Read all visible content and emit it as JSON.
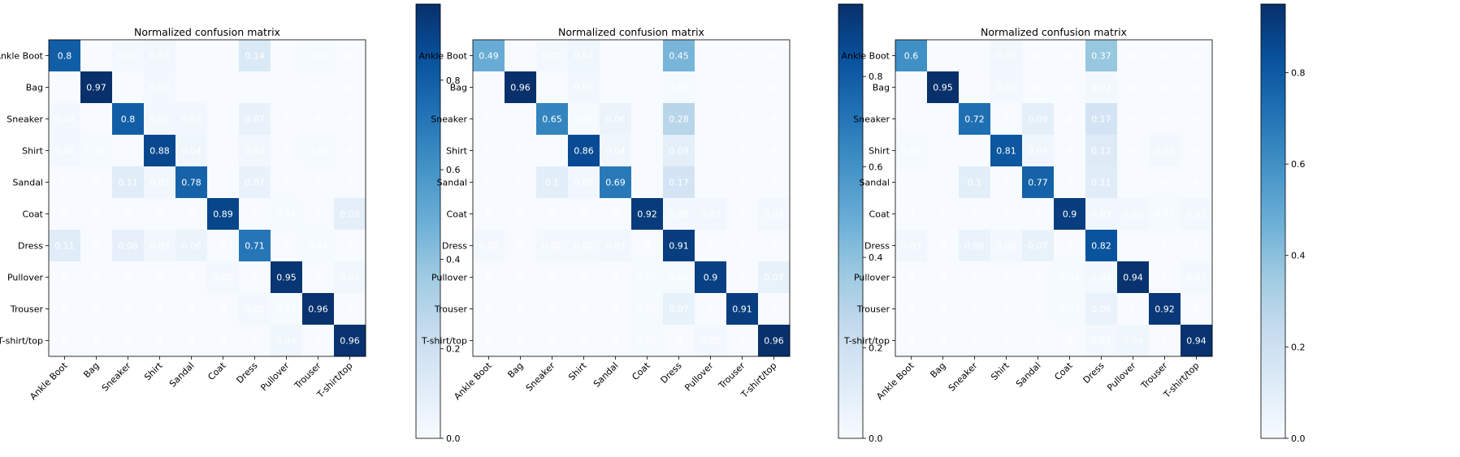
{
  "chart_data": [
    {
      "type": "heatmap",
      "title": "Normalized confusion matrix",
      "labels": [
        "Ankle Boot",
        "Bag",
        "Sneaker",
        "Shirt",
        "Sandal",
        "Coat",
        "Dress",
        "Pullover",
        "Trouser",
        "T-shirt/top"
      ],
      "vmin": 0,
      "vmax": 0.97,
      "colorbar_ticks": [
        0.0,
        0.2,
        0.4,
        0.6,
        0.8
      ],
      "colormap": [
        "#f7fbff",
        "#deebf7",
        "#c6dbef",
        "#9ecae1",
        "#6baed6",
        "#4292c6",
        "#2171b5",
        "#08519c",
        "#08306b"
      ],
      "matrix": [
        [
          0.8,
          0.0,
          0.02,
          0.03,
          0.0,
          0.0,
          0.14,
          0.0,
          0.01,
          0.0
        ],
        [
          0.0,
          0.97,
          0.0,
          0.02,
          0.0,
          0.0,
          0.0,
          0.0,
          0.0,
          0.0
        ],
        [
          0.02,
          0.0,
          0.8,
          0.02,
          0.03,
          0.0,
          0.07,
          0.0,
          0.0,
          0.0
        ],
        [
          0.02,
          0.01,
          0.0,
          0.88,
          0.04,
          0.0,
          0.03,
          0.0,
          0.01,
          0.0
        ],
        [
          0.0,
          0.0,
          0.11,
          0.03,
          0.78,
          0.0,
          0.07,
          0.0,
          0.0,
          0.0
        ],
        [
          0.0,
          0.0,
          0.0,
          0.0,
          0.0,
          0.89,
          0.0,
          0.01,
          0.0,
          0.09
        ],
        [
          0.11,
          0.0,
          0.08,
          0.03,
          0.06,
          0.0,
          0.71,
          0.0,
          0.01,
          0.0
        ],
        [
          0.0,
          0.0,
          0.0,
          0.0,
          0.0,
          0.02,
          0.0,
          0.95,
          0.0,
          0.03
        ],
        [
          0.0,
          0.0,
          0.0,
          0.0,
          0.0,
          0.0,
          0.02,
          0.01,
          0.96,
          0.0
        ],
        [
          0.0,
          0.0,
          0.0,
          0.0,
          0.0,
          0.0,
          0.0,
          0.04,
          0.0,
          0.96
        ]
      ]
    },
    {
      "type": "heatmap",
      "title": "Normalized confusion matrix",
      "labels": [
        "Ankle Boot",
        "Bag",
        "Sneaker",
        "Shirt",
        "Sandal",
        "Coat",
        "Dress",
        "Pullover",
        "Trouser",
        "T-shirt/top"
      ],
      "vmin": 0,
      "vmax": 0.96,
      "colorbar_ticks": [
        0.0,
        0.2,
        0.4,
        0.6,
        0.8
      ],
      "colormap": [
        "#f7fbff",
        "#deebf7",
        "#c6dbef",
        "#9ecae1",
        "#6baed6",
        "#4292c6",
        "#2171b5",
        "#08519c",
        "#08306b"
      ],
      "matrix": [
        [
          0.49,
          0.0,
          0.02,
          0.04,
          0.0,
          0.0,
          0.45,
          0.0,
          0.0,
          0.0
        ],
        [
          0.0,
          0.96,
          0.0,
          0.03,
          0.0,
          0.0,
          0.01,
          0.0,
          0.0,
          0.0
        ],
        [
          0.0,
          0.0,
          0.65,
          0.01,
          0.06,
          0.0,
          0.28,
          0.0,
          0.0,
          0.0
        ],
        [
          0.0,
          0.0,
          0.0,
          0.86,
          0.04,
          0.0,
          0.09,
          0.0,
          0.0,
          0.0
        ],
        [
          0.0,
          0.0,
          0.1,
          0.03,
          0.69,
          0.0,
          0.17,
          0.0,
          0.0,
          0.0
        ],
        [
          0.0,
          0.0,
          0.0,
          0.0,
          0.0,
          0.92,
          0.02,
          0.03,
          0.0,
          0.02
        ],
        [
          0.02,
          0.0,
          0.02,
          0.02,
          0.03,
          0.0,
          0.91,
          0.0,
          0.0,
          0.0
        ],
        [
          0.0,
          0.0,
          0.0,
          0.0,
          0.0,
          0.01,
          0.01,
          0.9,
          0.0,
          0.07
        ],
        [
          0.0,
          0.0,
          0.0,
          0.0,
          0.0,
          0.01,
          0.07,
          0.0,
          0.91,
          0.0
        ],
        [
          0.0,
          0.0,
          0.0,
          0.0,
          0.0,
          0.01,
          0.0,
          0.02,
          0.0,
          0.96
        ]
      ]
    },
    {
      "type": "heatmap",
      "title": "Normalized confusion matrix",
      "labels": [
        "Ankle Boot",
        "Bag",
        "Sneaker",
        "Shirt",
        "Sandal",
        "Coat",
        "Dress",
        "Pullover",
        "Trouser",
        "T-shirt/top"
      ],
      "vmin": 0,
      "vmax": 0.95,
      "colorbar_ticks": [
        0.0,
        0.2,
        0.4,
        0.6,
        0.8
      ],
      "colormap": [
        "#f7fbff",
        "#deebf7",
        "#c6dbef",
        "#9ecae1",
        "#6baed6",
        "#4292c6",
        "#2171b5",
        "#08519c",
        "#08306b"
      ],
      "matrix": [
        [
          0.6,
          0.0,
          0.0,
          0.03,
          0.0,
          0.0,
          0.37,
          0.0,
          0.0,
          0.0
        ],
        [
          0.0,
          0.95,
          0.0,
          0.02,
          0.0,
          0.0,
          0.02,
          0.0,
          0.0,
          0.0
        ],
        [
          0.0,
          0.0,
          0.72,
          0.0,
          0.09,
          0.0,
          0.17,
          0.0,
          0.0,
          0.0
        ],
        [
          0.01,
          0.0,
          0.0,
          0.81,
          0.04,
          0.0,
          0.12,
          0.0,
          0.02,
          0.0
        ],
        [
          0.0,
          0.0,
          0.1,
          0.0,
          0.77,
          0.0,
          0.11,
          0.0,
          0.0,
          0.0
        ],
        [
          0.0,
          0.0,
          0.0,
          0.0,
          0.0,
          0.9,
          0.03,
          0.02,
          0.01,
          0.02
        ],
        [
          0.03,
          0.0,
          0.06,
          0.02,
          0.07,
          0.0,
          0.82,
          0.0,
          0.0,
          0.0
        ],
        [
          0.0,
          0.0,
          0.0,
          0.0,
          0.0,
          0.01,
          0.02,
          0.94,
          0.0,
          0.02
        ],
        [
          0.0,
          0.0,
          0.0,
          0.0,
          0.0,
          0.01,
          0.06,
          0.0,
          0.92,
          0.0
        ],
        [
          0.0,
          0.0,
          0.0,
          0.0,
          0.0,
          0.0,
          0.02,
          0.04,
          0.0,
          0.94
        ]
      ]
    }
  ]
}
